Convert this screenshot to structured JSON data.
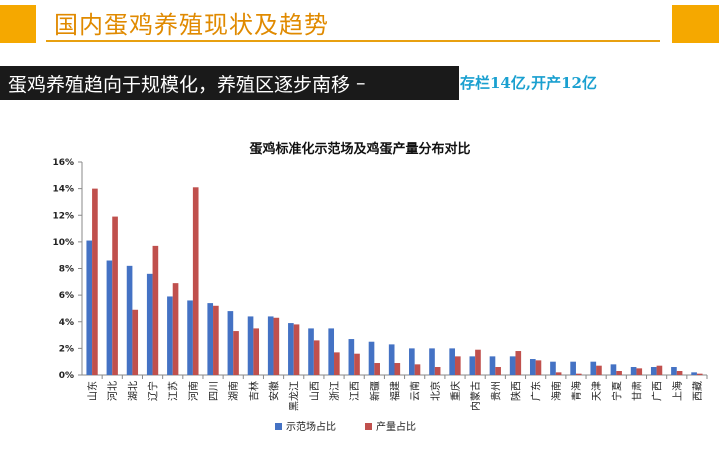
{
  "header": {
    "title": "国内蛋鸡养殖现状及趋势"
  },
  "subheader": {
    "text": "蛋鸡养殖趋向于规模化，养殖区逐步南移",
    "dash": "–",
    "extra": "存栏14亿,开产12亿"
  },
  "colors": {
    "accent": "#f5a800",
    "title": "#e08a00",
    "series1": "#4472c4",
    "series2": "#c0504d",
    "extra_text": "#1aa0d0"
  },
  "chart_data": {
    "type": "bar",
    "title": "蛋鸡标准化示范场及鸡蛋产量分布对比",
    "xlabel": "",
    "ylabel": "",
    "ylim": [
      0,
      16
    ],
    "y_unit": "%",
    "yticks": [
      "0%",
      "2%",
      "4%",
      "6%",
      "8%",
      "10%",
      "12%",
      "14%",
      "16%"
    ],
    "grid": false,
    "legend_position": "bottom",
    "categories": [
      "山东",
      "河北",
      "湖北",
      "辽宁",
      "江苏",
      "河南",
      "四川",
      "湖南",
      "吉林",
      "安徽",
      "黑龙江",
      "山西",
      "浙江",
      "江西",
      "新疆",
      "福建",
      "云南",
      "北京",
      "重庆",
      "内蒙古",
      "贵州",
      "陕西",
      "广东",
      "海南",
      "青海",
      "天津",
      "宁夏",
      "甘肃",
      "广西",
      "上海",
      "西藏"
    ],
    "series": [
      {
        "name": "示范场占比",
        "values": [
          10.1,
          8.6,
          8.2,
          7.6,
          5.9,
          5.6,
          5.4,
          4.8,
          4.4,
          4.4,
          3.9,
          3.5,
          3.5,
          2.7,
          2.5,
          2.3,
          2.0,
          2.0,
          2.0,
          1.4,
          1.4,
          1.4,
          1.2,
          1.0,
          1.0,
          1.0,
          0.8,
          0.6,
          0.6,
          0.6,
          0.2
        ]
      },
      {
        "name": "产量占比",
        "values": [
          14.0,
          11.9,
          4.9,
          9.7,
          6.9,
          14.1,
          5.2,
          3.3,
          3.5,
          4.3,
          3.8,
          2.6,
          1.7,
          1.6,
          0.9,
          0.9,
          0.8,
          0.6,
          1.4,
          1.9,
          0.6,
          1.8,
          1.1,
          0.2,
          0.1,
          0.7,
          0.3,
          0.5,
          0.7,
          0.3,
          0.1
        ]
      }
    ]
  }
}
